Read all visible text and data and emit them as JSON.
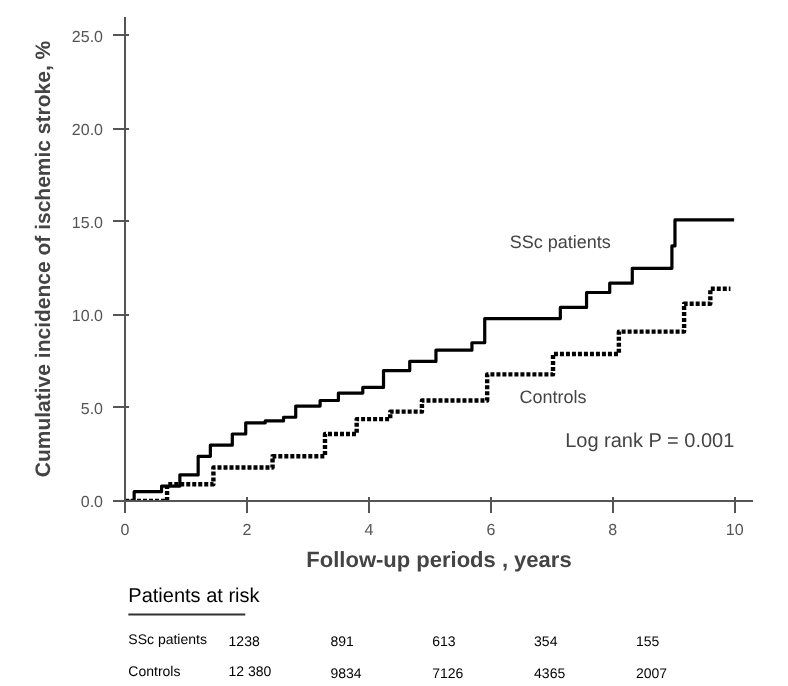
{
  "chart_data": {
    "type": "step",
    "xlabel": "Follow-up periods , years",
    "ylabel": "Cumulative incidence of ischemic stroke, %",
    "xlim": [
      0,
      10.3
    ],
    "ylim": [
      0,
      26
    ],
    "xticks": [
      0,
      2,
      4,
      6,
      8,
      10
    ],
    "yticks": [
      {
        "value": 0,
        "label": "0.0"
      },
      {
        "value": 5,
        "label": "5.0"
      },
      {
        "value": 10,
        "label": "10.0"
      },
      {
        "value": 15,
        "label": "15.0"
      },
      {
        "value": 20,
        "label": "20.0"
      },
      {
        "value": 25,
        "label": "25.0"
      }
    ],
    "grid": false,
    "series": [
      {
        "name": "SSc patients",
        "color": "#000000",
        "line_style": "solid",
        "x": [
          0,
          0.15,
          0.6,
          0.9,
          1.2,
          1.4,
          1.76,
          1.98,
          2.3,
          2.6,
          2.8,
          3.2,
          3.5,
          3.9,
          4.24,
          4.67,
          5.1,
          5.69,
          5.9,
          6.93,
          7.14,
          7.57,
          7.95,
          8.32,
          8.91,
          8.97,
          9.02,
          9.99
        ],
        "values": [
          0,
          0.5,
          0.8,
          1.4,
          2.4,
          3.0,
          3.6,
          4.2,
          4.3,
          4.5,
          5.1,
          5.4,
          5.8,
          6.1,
          7.0,
          7.5,
          8.1,
          8.5,
          9.8,
          9.8,
          10.4,
          11.2,
          11.7,
          12.5,
          12.5,
          13.7,
          15.1,
          15.1
        ]
      },
      {
        "name": "Controls",
        "color": "#000000",
        "line_style": "dotted",
        "x": [
          0,
          0.69,
          1.45,
          2.42,
          3.28,
          3.8,
          4.35,
          4.87,
          5.94,
          7.02,
          8.1,
          9.17,
          9.6,
          9.93
        ],
        "values": [
          0,
          0.9,
          1.8,
          2.4,
          3.6,
          4.4,
          4.8,
          5.4,
          6.8,
          7.9,
          9.1,
          10.6,
          11.4,
          11.4
        ]
      }
    ],
    "annotations": [
      "Log rank P = 0.001",
      "Patients at risk",
      "SSc patients",
      "1238",
      "891",
      "613",
      "354",
      "155",
      "Controls",
      "12 380",
      "9834",
      "7126",
      "4365",
      "2007"
    ]
  }
}
